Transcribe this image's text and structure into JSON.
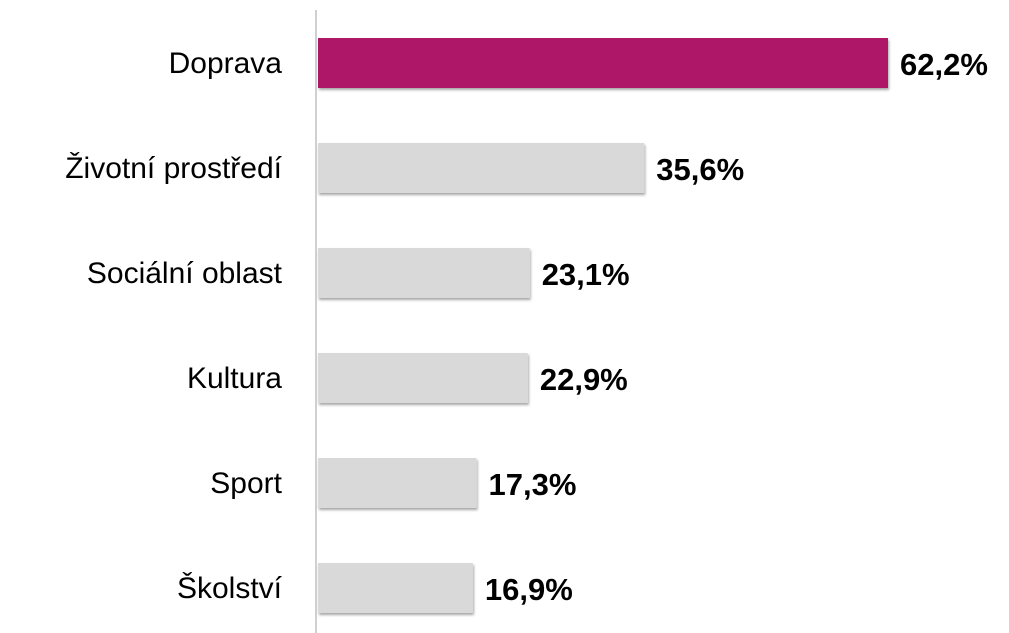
{
  "chart_data": {
    "type": "bar",
    "orientation": "horizontal",
    "categories": [
      "Doprava",
      "Životní prostředí",
      "Sociální oblast",
      "Kultura",
      "Sport",
      "Školství"
    ],
    "values": [
      62.2,
      35.6,
      23.1,
      22.9,
      17.3,
      16.9
    ],
    "value_labels": [
      "62,2%",
      "35,6%",
      "23,1%",
      "22,9%",
      "17,3%",
      "16,9%"
    ],
    "colors": [
      "#ae1368",
      "#d9d9d9",
      "#d9d9d9",
      "#d9d9d9",
      "#d9d9d9",
      "#d9d9d9"
    ]
  }
}
